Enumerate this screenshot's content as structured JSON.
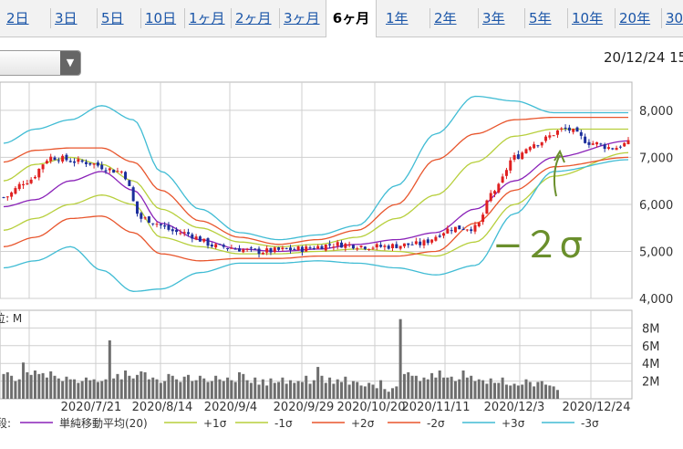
{
  "tabs": [
    {
      "label": "2日",
      "active": false
    },
    {
      "label": "3日",
      "active": false
    },
    {
      "label": "5日",
      "active": false
    },
    {
      "label": "10日",
      "active": false
    },
    {
      "label": "1ヶ月",
      "active": false
    },
    {
      "label": "2ヶ月",
      "active": false
    },
    {
      "label": "3ヶ月",
      "active": false
    },
    {
      "label": "6ヶ月",
      "active": true
    },
    {
      "label": "1年",
      "active": false
    },
    {
      "label": "2年",
      "active": false
    },
    {
      "label": "3年",
      "active": false
    },
    {
      "label": "5年",
      "active": false
    },
    {
      "label": "10年",
      "active": false
    },
    {
      "label": "20年",
      "active": false
    },
    {
      "label": "30",
      "active": false
    }
  ],
  "datetime": "20/12/24 15",
  "dropdown": {
    "icon": "triangle-down-icon"
  },
  "annotation": {
    "text": "−２σ",
    "color": "#6a8f2c"
  },
  "volume_unit": "位: M",
  "legend_prefix": "段:",
  "chart_data": [
    {
      "type": "line",
      "title": "",
      "x": [
        "2020/7/21",
        "2020/8/14",
        "2020/9/4",
        "2020/9/29",
        "2020/10/20",
        "2020/11/11",
        "2020/12/3",
        "2020/12/24"
      ],
      "ylim": [
        4000,
        8600
      ],
      "yticks": [
        "8,000",
        "7,000",
        "6,000",
        "5,000",
        "4,000"
      ],
      "ytick_values": [
        8000,
        7000,
        6000,
        5000,
        4000
      ],
      "grid": true,
      "anchor_x": [
        0,
        7,
        14,
        24,
        30,
        39,
        48,
        58,
        67,
        78,
        88,
        96,
        104,
        113,
        121
      ],
      "price_anchors": [
        6150,
        6500,
        7000,
        6900,
        6700,
        5700,
        5400,
        5100,
        5000,
        5050,
        5150,
        5100,
        5150,
        5500,
        5500,
        6300,
        7000,
        7300,
        7600,
        7300,
        7200,
        7300
      ],
      "price_anchor_x": [
        0,
        6,
        12,
        20,
        30,
        35,
        45,
        55,
        65,
        75,
        85,
        95,
        105,
        115,
        120,
        125,
        130,
        135,
        143,
        150,
        155,
        159
      ],
      "series": [
        {
          "name": "単純移動平均(20)",
          "color": "#8a22b8",
          "anchor_y": [
            5950,
            6100,
            6500,
            6700,
            6300,
            5600,
            5250,
            5050,
            5000,
            5050,
            5150,
            5250,
            5400,
            5900,
            6500,
            7000,
            7350
          ]
        },
        {
          "name": "+1σ",
          "color": "#b7cf3c",
          "anchor_y": [
            6500,
            6850,
            7000,
            6850,
            6500,
            5900,
            5500,
            5200,
            5100,
            5150,
            5300,
            5700,
            6200,
            6900,
            7450,
            7600,
            7600
          ]
        },
        {
          "name": "-1σ",
          "color": "#b7cf3c",
          "anchor_y": [
            5450,
            5700,
            6000,
            6200,
            6000,
            5300,
            5100,
            4950,
            4950,
            5000,
            5050,
            5000,
            4900,
            5200,
            6000,
            6600,
            7100
          ]
        },
        {
          "name": "+2σ",
          "color": "#e8552c",
          "anchor_y": [
            6900,
            7150,
            7200,
            7200,
            6900,
            6300,
            5650,
            5300,
            5150,
            5250,
            5450,
            6000,
            6950,
            7500,
            7800,
            7850,
            7850
          ]
        },
        {
          "name": "-2σ",
          "color": "#e8552c",
          "anchor_y": [
            5100,
            5300,
            5700,
            5750,
            5400,
            4950,
            4800,
            4850,
            4850,
            4900,
            4900,
            4900,
            5000,
            5600,
            6300,
            6800,
            7000
          ]
        },
        {
          "name": "+3σ",
          "color": "#40bcd4",
          "anchor_y": [
            7300,
            7600,
            7800,
            8100,
            7800,
            6700,
            5900,
            5400,
            5250,
            5350,
            5550,
            6400,
            7500,
            8300,
            8200,
            7950,
            7950
          ]
        },
        {
          "name": "-3σ",
          "color": "#40bcd4",
          "anchor_y": [
            4650,
            4800,
            5100,
            4600,
            4150,
            4200,
            4550,
            4750,
            4750,
            4800,
            4750,
            4650,
            4500,
            4700,
            5800,
            6700,
            6950
          ]
        }
      ],
      "series_anchor_x": [
        0,
        8,
        17,
        25,
        33,
        40,
        50,
        60,
        70,
        80,
        90,
        100,
        110,
        120,
        130,
        140,
        159
      ],
      "n_days": 160
    },
    {
      "type": "bar",
      "title": "",
      "ylabel": "M",
      "ylim": [
        0,
        10
      ],
      "yticks": [
        "8M",
        "6M",
        "4M",
        "2M"
      ],
      "ytick_values": [
        8,
        6,
        4,
        2
      ],
      "grid": true,
      "values": [
        2.8,
        3.0,
        2.6,
        2.0,
        2.2,
        4.1,
        3.0,
        2.7,
        3.2,
        2.8,
        2.9,
        2.4,
        3.1,
        2.6,
        2.3,
        2.0,
        2.5,
        2.2,
        2.2,
        1.8,
        2.0,
        2.4,
        2.1,
        2.2,
        1.9,
        2.0,
        2.2,
        6.6,
        2.3,
        2.8,
        2.2,
        3.2,
        2.6,
        2.3,
        2.7,
        3.1,
        3.0,
        2.2,
        2.4,
        2.2,
        1.8,
        2.0,
        2.8,
        2.6,
        2.2,
        1.9,
        2.5,
        2.7,
        2.0,
        2.1,
        2.6,
        2.3,
        1.9,
        2.0,
        2.6,
        2.2,
        2.0,
        2.4,
        2.1,
        1.9,
        3.0,
        2.8,
        2.1,
        1.8,
        2.4,
        1.6,
        2.2,
        1.5,
        2.3,
        1.8,
        1.9,
        2.4,
        1.7,
        2.1,
        1.8,
        2.0,
        1.9,
        2.6,
        1.7,
        2.1,
        3.6,
        2.6,
        1.8,
        2.4,
        1.7,
        2.2,
        1.9,
        2.5,
        1.6,
        2.0,
        1.9,
        1.5,
        1.4,
        1.8,
        1.6,
        1.2,
        2.1,
        1.1,
        0.8,
        1.2,
        1.4,
        9.0,
        2.8,
        3.0,
        2.6,
        2.6,
        2.0,
        2.4,
        2.2,
        2.9,
        2.4,
        3.2,
        2.4,
        2.4,
        2.5,
        2.0,
        2.2,
        3.2,
        2.4,
        2.6,
        2.0,
        2.2,
        2.1,
        1.7,
        2.3,
        1.8,
        1.8,
        2.4,
        1.6,
        1.5,
        1.7,
        1.5,
        1.6,
        2.2,
        1.9,
        1.4,
        1.9,
        2.0,
        1.6,
        1.5,
        1.4,
        1.0
      ]
    }
  ]
}
